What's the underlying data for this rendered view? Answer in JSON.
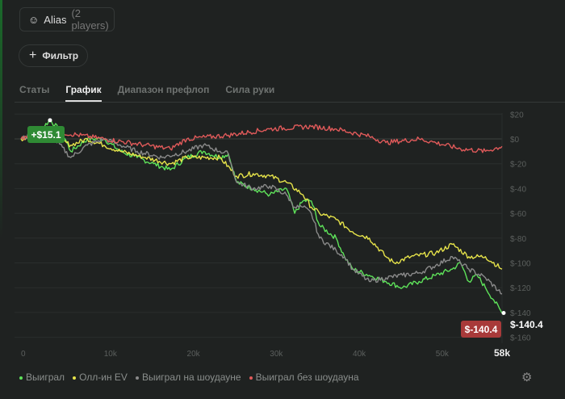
{
  "alias": {
    "label": "Alias",
    "players": "(2 players)"
  },
  "filter": {
    "label": "Фильтр"
  },
  "tabs": [
    {
      "label": "Статы"
    },
    {
      "label": "График"
    },
    {
      "label": "Диапазон префлоп"
    },
    {
      "label": "Сила руки"
    }
  ],
  "chart_data": {
    "type": "line",
    "xlabel": "",
    "ylabel": "",
    "xlim": [
      0,
      58
    ],
    "ylim": [
      -160,
      20
    ],
    "x_ticks": [
      "0",
      "10k",
      "20k",
      "30k",
      "40k",
      "50k",
      "58k"
    ],
    "x_tick_values": [
      0,
      10,
      20,
      30,
      40,
      50,
      58
    ],
    "y_ticks": [
      "$20",
      "$0",
      "$-20",
      "$-40",
      "$-60",
      "$-80",
      "$-100",
      "$-120",
      "$-140",
      "$-160"
    ],
    "y_tick_values": [
      20,
      0,
      -20,
      -40,
      -60,
      -80,
      -100,
      -120,
      -140,
      -160
    ],
    "series": [
      {
        "name": "Выиграл",
        "color": "#5ee35a",
        "points": [
          [
            0,
            0
          ],
          [
            2,
            5
          ],
          [
            3.5,
            15.1
          ],
          [
            5,
            5
          ],
          [
            6,
            -10
          ],
          [
            8,
            0
          ],
          [
            10,
            0
          ],
          [
            12,
            -10
          ],
          [
            14,
            -15
          ],
          [
            16,
            -20
          ],
          [
            18,
            -25
          ],
          [
            20,
            -15
          ],
          [
            22,
            -10
          ],
          [
            24,
            -15
          ],
          [
            25,
            -12
          ],
          [
            26,
            -35
          ],
          [
            28,
            -40
          ],
          [
            30,
            -45
          ],
          [
            32,
            -40
          ],
          [
            33,
            -60
          ],
          [
            34,
            -50
          ],
          [
            35,
            -50
          ],
          [
            36,
            -70
          ],
          [
            38,
            -80
          ],
          [
            39,
            -95
          ],
          [
            40,
            -105
          ],
          [
            42,
            -110
          ],
          [
            44,
            -115
          ],
          [
            46,
            -120
          ],
          [
            48,
            -115
          ],
          [
            50,
            -110
          ],
          [
            52,
            -105
          ],
          [
            53,
            -100
          ],
          [
            54,
            -115
          ],
          [
            55,
            -110
          ],
          [
            56,
            -120
          ],
          [
            57,
            -130
          ],
          [
            58,
            -140.4
          ]
        ]
      },
      {
        "name": "Олл-ин EV",
        "color": "#e6e34a",
        "points": [
          [
            0,
            0
          ],
          [
            3,
            5
          ],
          [
            6,
            -5
          ],
          [
            8,
            0
          ],
          [
            10,
            -5
          ],
          [
            12,
            -10
          ],
          [
            15,
            -15
          ],
          [
            18,
            -20
          ],
          [
            20,
            -15
          ],
          [
            24,
            -15
          ],
          [
            26,
            -30
          ],
          [
            28,
            -28
          ],
          [
            30,
            -30
          ],
          [
            32,
            -35
          ],
          [
            34,
            -45
          ],
          [
            35,
            -55
          ],
          [
            36,
            -60
          ],
          [
            38,
            -65
          ],
          [
            40,
            -75
          ],
          [
            42,
            -80
          ],
          [
            44,
            -95
          ],
          [
            45,
            -100
          ],
          [
            47,
            -95
          ],
          [
            50,
            -92
          ],
          [
            52,
            -85
          ],
          [
            54,
            -95
          ],
          [
            56,
            -95
          ],
          [
            58,
            -105
          ]
        ]
      },
      {
        "name": "Выиграл на шоудауне",
        "color": "#8a8a8a",
        "points": [
          [
            0,
            0
          ],
          [
            3,
            8
          ],
          [
            6,
            -15
          ],
          [
            8,
            -5
          ],
          [
            10,
            0
          ],
          [
            12,
            -5
          ],
          [
            14,
            -10
          ],
          [
            17,
            -15
          ],
          [
            20,
            -10
          ],
          [
            22,
            -5
          ],
          [
            24,
            -10
          ],
          [
            25,
            -12
          ],
          [
            26,
            -35
          ],
          [
            28,
            -40
          ],
          [
            30,
            -38
          ],
          [
            32,
            -45
          ],
          [
            33,
            -55
          ],
          [
            34,
            -55
          ],
          [
            35,
            -60
          ],
          [
            36,
            -80
          ],
          [
            38,
            -90
          ],
          [
            39,
            -95
          ],
          [
            40,
            -105
          ],
          [
            42,
            -115
          ],
          [
            44,
            -112
          ],
          [
            46,
            -110
          ],
          [
            48,
            -108
          ],
          [
            50,
            -102
          ],
          [
            52,
            -95
          ],
          [
            53,
            -100
          ],
          [
            54,
            -105
          ],
          [
            56,
            -112
          ],
          [
            58,
            -125
          ]
        ]
      },
      {
        "name": "Выиграл без шоудауна",
        "color": "#e05a5a",
        "points": [
          [
            0,
            0
          ],
          [
            5,
            5
          ],
          [
            10,
            0
          ],
          [
            15,
            -5
          ],
          [
            18,
            -8
          ],
          [
            20,
            0
          ],
          [
            25,
            3
          ],
          [
            30,
            8
          ],
          [
            35,
            10
          ],
          [
            38,
            8
          ],
          [
            42,
            2
          ],
          [
            44,
            -3
          ],
          [
            48,
            0
          ],
          [
            50,
            -3
          ],
          [
            53,
            -8
          ],
          [
            56,
            -10
          ],
          [
            58,
            -6
          ]
        ]
      }
    ],
    "annotations": {
      "max_label": "+$15.1",
      "min_label": "$-140.4",
      "end_label": "$-140.4"
    }
  }
}
